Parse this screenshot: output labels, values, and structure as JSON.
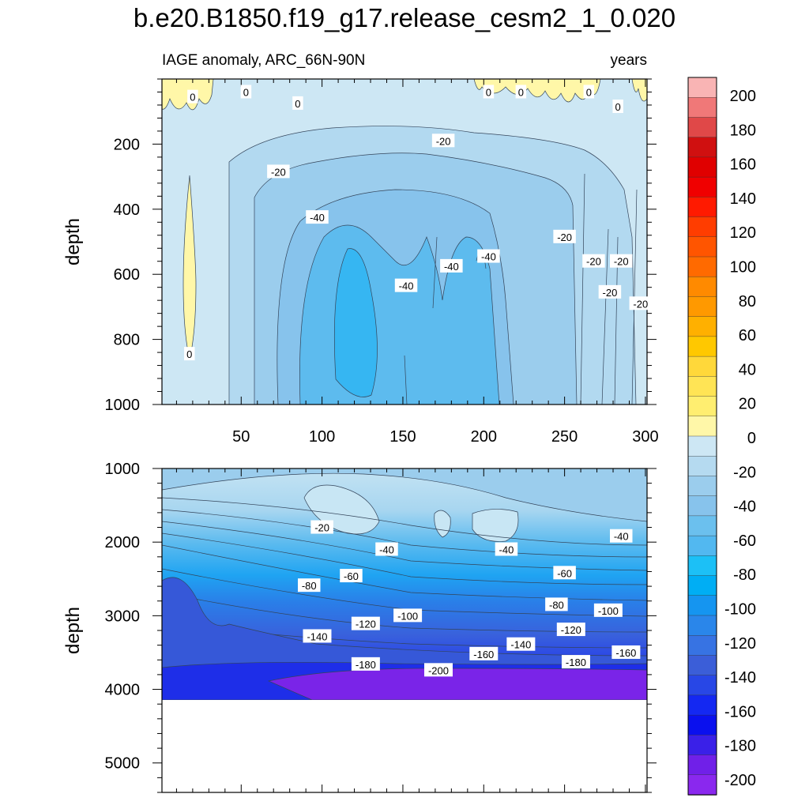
{
  "chart_data": {
    "type": "contour",
    "title": "b.e20.B1850.f19_g17.release_cesm2_1_0.020",
    "subtitle_left": "IAGE anomaly, ARC_66N-90N",
    "subtitle_right": "years",
    "panels": [
      {
        "name": "upper",
        "ylabel": "depth",
        "ylim": [
          1000,
          0
        ],
        "xlim": [
          1,
          301
        ],
        "yticks": [
          200,
          400,
          600,
          800,
          1000
        ],
        "xticks": [
          50,
          100,
          150,
          200,
          250,
          300
        ],
        "contour_labels": [
          {
            "x": 20,
            "y": 55,
            "text": "0"
          },
          {
            "x": 53,
            "y": 40,
            "text": "0"
          },
          {
            "x": 85,
            "y": 75,
            "text": "0"
          },
          {
            "x": 203,
            "y": 40,
            "text": "0"
          },
          {
            "x": 223,
            "y": 40,
            "text": "0"
          },
          {
            "x": 265,
            "y": 40,
            "text": "0"
          },
          {
            "x": 283,
            "y": 85,
            "text": "0"
          },
          {
            "x": 18,
            "y": 845,
            "text": "0"
          },
          {
            "x": 175,
            "y": 190,
            "text": "-20"
          },
          {
            "x": 73,
            "y": 285,
            "text": "-20"
          },
          {
            "x": 250,
            "y": 485,
            "text": "-20"
          },
          {
            "x": 268,
            "y": 560,
            "text": "-20"
          },
          {
            "x": 285,
            "y": 560,
            "text": "-20"
          },
          {
            "x": 278,
            "y": 655,
            "text": "-20"
          },
          {
            "x": 297,
            "y": 690,
            "text": "-20"
          },
          {
            "x": 97,
            "y": 425,
            "text": "-40"
          },
          {
            "x": 152,
            "y": 635,
            "text": "-40"
          },
          {
            "x": 180,
            "y": 575,
            "text": "-40"
          },
          {
            "x": 203,
            "y": 545,
            "text": "-40"
          }
        ]
      },
      {
        "name": "lower",
        "ylabel": "depth",
        "ylim": [
          5400,
          1000
        ],
        "xlim": [
          1,
          301
        ],
        "yticks": [
          1000,
          2000,
          3000,
          4000,
          5000
        ],
        "bottom_of_data": 4100,
        "contour_labels": [
          {
            "x": 100,
            "y": 1800,
            "text": "-20"
          },
          {
            "x": 140,
            "y": 2100,
            "text": "-40"
          },
          {
            "x": 214,
            "y": 2100,
            "text": "-40"
          },
          {
            "x": 285,
            "y": 1920,
            "text": "-40"
          },
          {
            "x": 118,
            "y": 2460,
            "text": "-60"
          },
          {
            "x": 250,
            "y": 2420,
            "text": "-60"
          },
          {
            "x": 92,
            "y": 2590,
            "text": "-80"
          },
          {
            "x": 245,
            "y": 2850,
            "text": "-80"
          },
          {
            "x": 153,
            "y": 3000,
            "text": "-100"
          },
          {
            "x": 277,
            "y": 2930,
            "text": "-100"
          },
          {
            "x": 127,
            "y": 3110,
            "text": "-120"
          },
          {
            "x": 254,
            "y": 3190,
            "text": "-120"
          },
          {
            "x": 97,
            "y": 3280,
            "text": "-140"
          },
          {
            "x": 223,
            "y": 3390,
            "text": "-140"
          },
          {
            "x": 200,
            "y": 3520,
            "text": "-160"
          },
          {
            "x": 288,
            "y": 3500,
            "text": "-160"
          },
          {
            "x": 127,
            "y": 3660,
            "text": "-180"
          },
          {
            "x": 257,
            "y": 3630,
            "text": "-180"
          },
          {
            "x": 172,
            "y": 3740,
            "text": "-200"
          }
        ]
      }
    ],
    "colorbar": {
      "labels": [
        "200",
        "180",
        "160",
        "140",
        "120",
        "100",
        "80",
        "60",
        "40",
        "20",
        "0",
        "-20",
        "-40",
        "-60",
        "-80",
        "-100",
        "-120",
        "-140",
        "-160",
        "-180",
        "-200"
      ],
      "colors": [
        "#f9b4b4",
        "#f07878",
        "#e04848",
        "#d01010",
        "#e00000",
        "#f00000",
        "#ff1a00",
        "#ff3d00",
        "#ff5500",
        "#ff6a00",
        "#ff8a00",
        "#ff9900",
        "#ffb000",
        "#ffc800",
        "#ffd83a",
        "#ffe455",
        "#ffee70",
        "#fff7a8",
        "#cde7f4",
        "#b5daf0",
        "#9bcded",
        "#87c3ec",
        "#6bc0ee",
        "#52b8f0",
        "#1cc0f6",
        "#00aef4",
        "#1595f0",
        "#2a86ea",
        "#3773e3",
        "#3b5ed8",
        "#2847e6",
        "#1428f2",
        "#0a10ee",
        "#3a20e8",
        "#7020e8",
        "#8a28ee"
      ]
    },
    "palette": {
      "zero_band": "#fff7a8",
      "neg20": "#cde7f4",
      "neg40": "#9bcded",
      "neg60": "#6bc0ee",
      "neg80": "#34c0f5",
      "deep": "#1f8ef0",
      "abyss": "#7a24e8"
    }
  }
}
